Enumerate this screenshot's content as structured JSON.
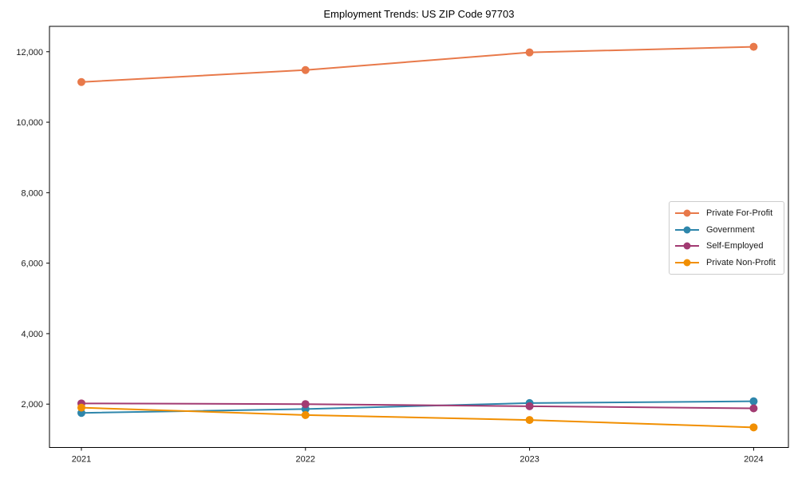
{
  "chart_data": {
    "type": "line",
    "title": "Employment Trends: US ZIP Code 97703",
    "xlabel": "",
    "ylabel": "",
    "categories": [
      "2021",
      "2022",
      "2023",
      "2024"
    ],
    "yticks": [
      2000,
      4000,
      6000,
      8000,
      10000,
      12000
    ],
    "ylim": [
      770,
      12720
    ],
    "grid": false,
    "legend_position": "center right",
    "marker": "circle",
    "series": [
      {
        "name": "Private For-Profit",
        "color": "#E8794A",
        "values": [
          11140,
          11480,
          11980,
          12140
        ]
      },
      {
        "name": "Government",
        "color": "#2E86AB",
        "values": [
          1750,
          1860,
          2030,
          2080
        ]
      },
      {
        "name": "Self-Employed",
        "color": "#A23B72",
        "values": [
          2020,
          2000,
          1940,
          1880
        ]
      },
      {
        "name": "Private Non-Profit",
        "color": "#F18F01",
        "values": [
          1900,
          1690,
          1550,
          1340
        ]
      }
    ],
    "axis_color": "#000000"
  }
}
